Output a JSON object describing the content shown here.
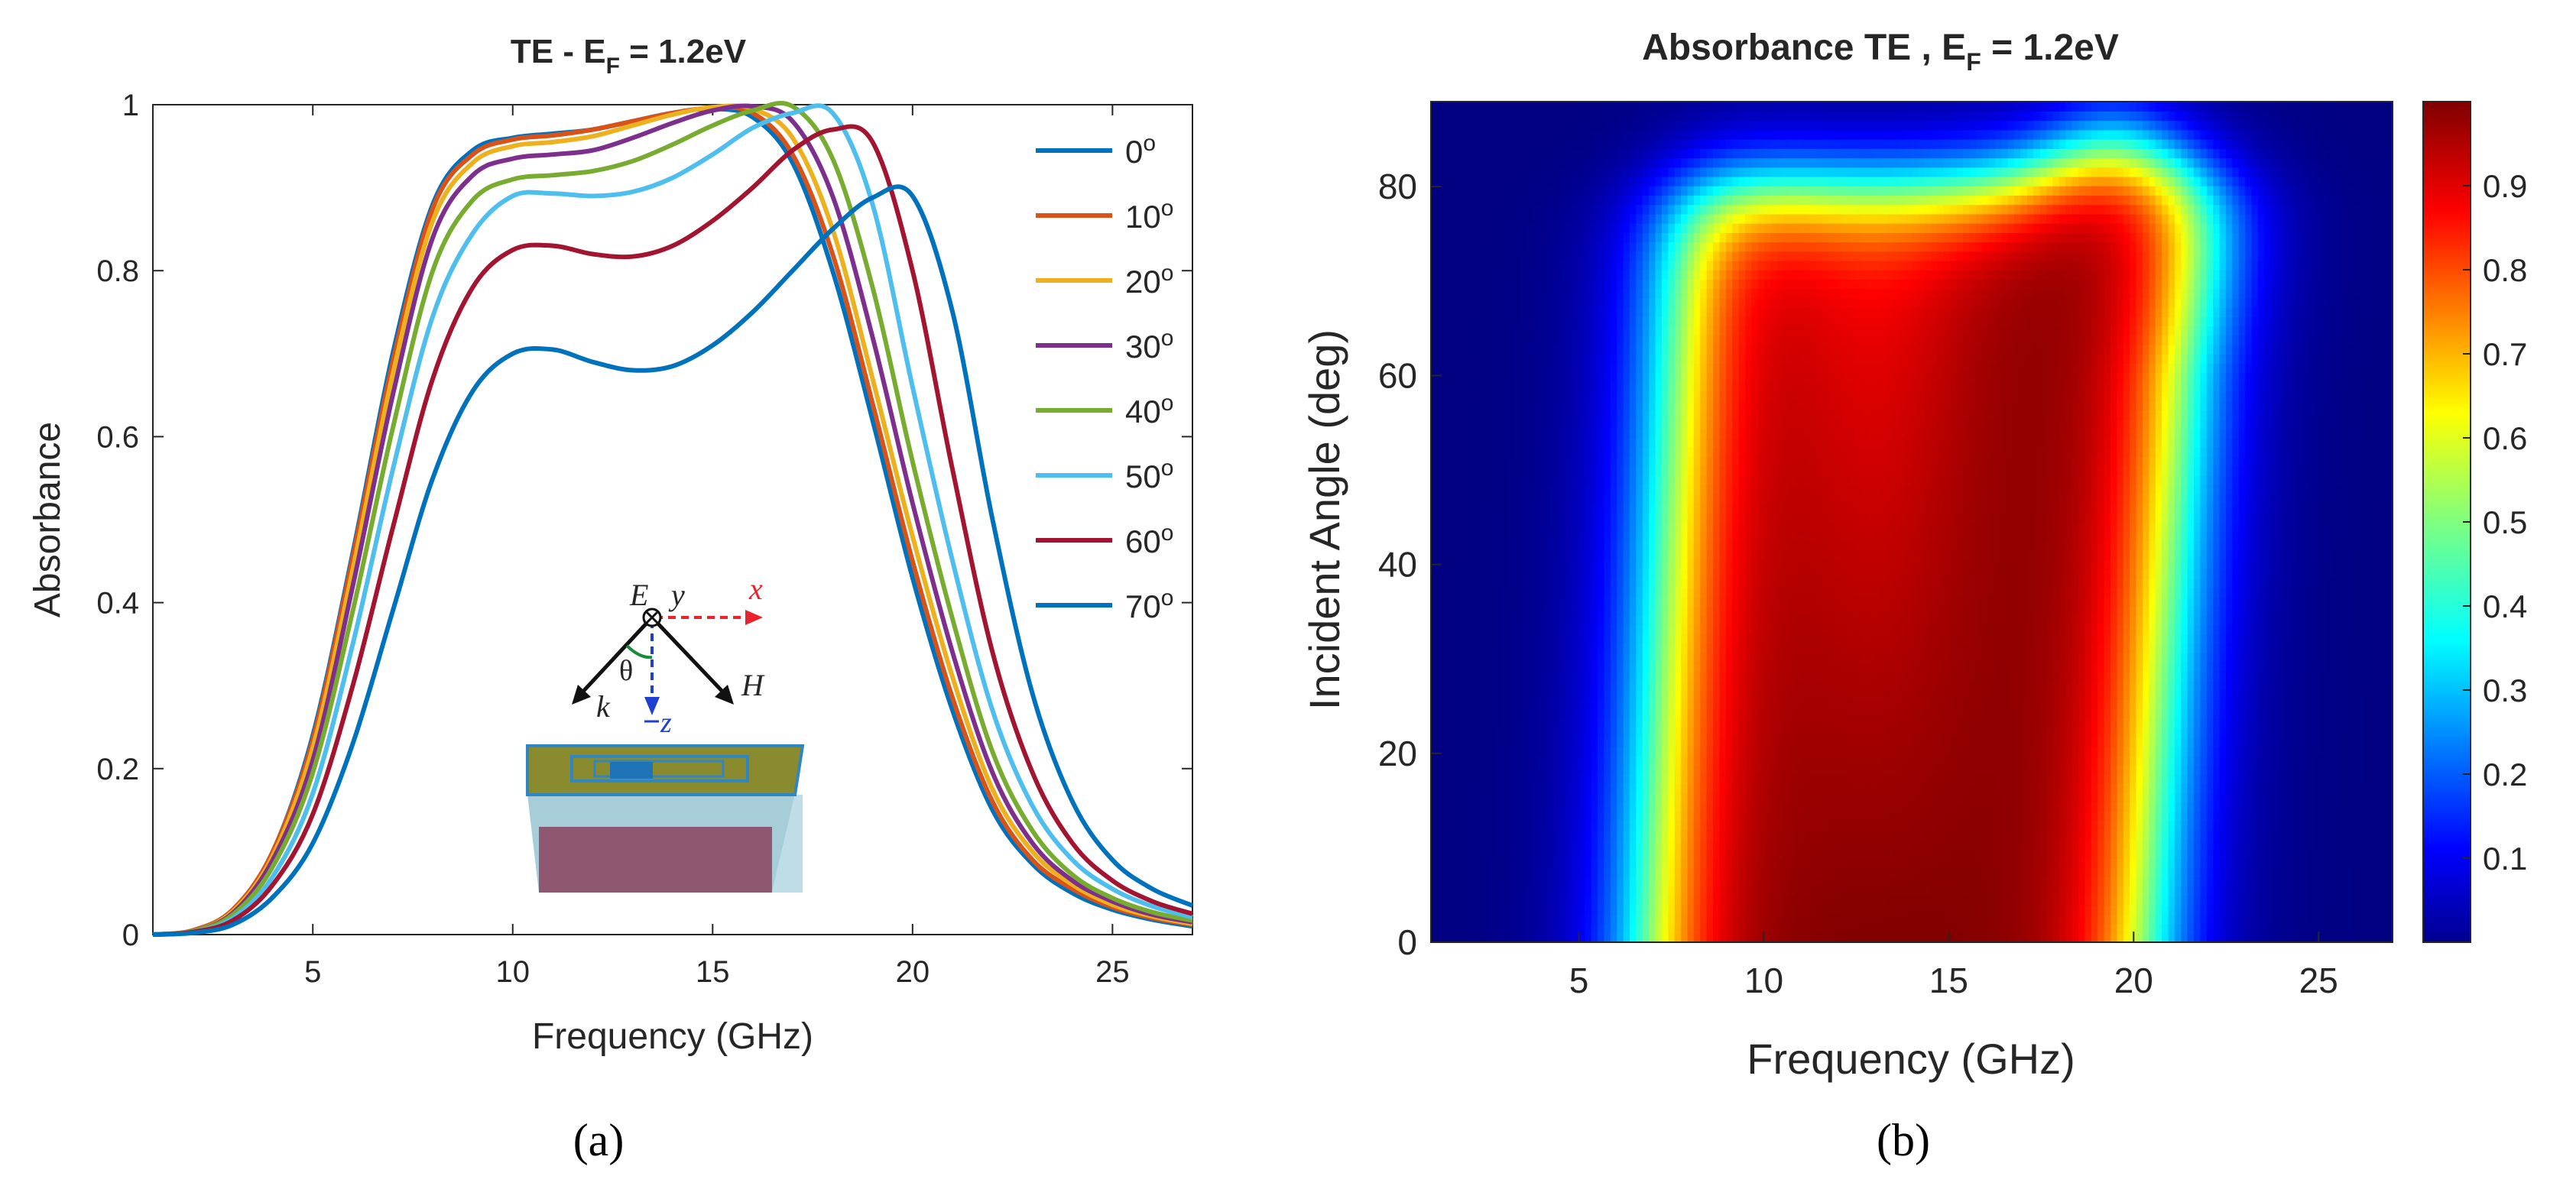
{
  "chart_data": [
    {
      "panel_label": "(a)",
      "type": "line",
      "title": "TE - E",
      "title_sub": "F",
      "title_rest": " = 1.2eV",
      "xlabel": "Frequency (GHz)",
      "ylabel": "Absorbance",
      "xlim": [
        1,
        27
      ],
      "ylim": [
        0,
        1
      ],
      "xticks": [
        5,
        10,
        15,
        20,
        25
      ],
      "yticks": [
        0,
        0.2,
        0.4,
        0.6,
        0.8,
        1
      ],
      "ytick_labels": [
        "0",
        "0.2",
        "0.4",
        "0.6",
        "0.8",
        "1"
      ],
      "legend_position": "top-right",
      "x": [
        1,
        2,
        3,
        4,
        5,
        6,
        7,
        8,
        9,
        10,
        11,
        12,
        13,
        14,
        15,
        16,
        17,
        18,
        19,
        20,
        21,
        22,
        23,
        24,
        25,
        26,
        27
      ],
      "series": [
        {
          "name": "0",
          "unit": "o",
          "color": "#0072BD",
          "values": [
            0.0,
            0.005,
            0.03,
            0.1,
            0.24,
            0.46,
            0.7,
            0.88,
            0.945,
            0.96,
            0.965,
            0.97,
            0.98,
            0.99,
            0.995,
            0.985,
            0.93,
            0.8,
            0.62,
            0.43,
            0.27,
            0.15,
            0.085,
            0.05,
            0.03,
            0.018,
            0.01
          ]
        },
        {
          "name": "10",
          "unit": "o",
          "color": "#D95319",
          "values": [
            0.0,
            0.005,
            0.03,
            0.1,
            0.235,
            0.455,
            0.69,
            0.875,
            0.94,
            0.958,
            0.963,
            0.97,
            0.98,
            0.99,
            0.996,
            0.99,
            0.94,
            0.82,
            0.64,
            0.45,
            0.285,
            0.16,
            0.09,
            0.055,
            0.033,
            0.02,
            0.012
          ]
        },
        {
          "name": "20",
          "unit": "o",
          "color": "#EDB120",
          "values": [
            0.0,
            0.004,
            0.028,
            0.095,
            0.225,
            0.44,
            0.675,
            0.86,
            0.93,
            0.95,
            0.955,
            0.962,
            0.975,
            0.988,
            0.997,
            0.995,
            0.96,
            0.85,
            0.67,
            0.48,
            0.31,
            0.175,
            0.1,
            0.06,
            0.036,
            0.022,
            0.013
          ]
        },
        {
          "name": "30",
          "unit": "o",
          "color": "#7E2F8E",
          "values": [
            0.0,
            0.004,
            0.026,
            0.09,
            0.21,
            0.42,
            0.65,
            0.84,
            0.915,
            0.935,
            0.94,
            0.945,
            0.96,
            0.978,
            0.993,
            0.998,
            0.98,
            0.89,
            0.72,
            0.52,
            0.34,
            0.195,
            0.11,
            0.065,
            0.04,
            0.024,
            0.015
          ]
        },
        {
          "name": "40",
          "unit": "o",
          "color": "#77AC30",
          "values": [
            0.0,
            0.004,
            0.024,
            0.082,
            0.195,
            0.39,
            0.61,
            0.8,
            0.885,
            0.91,
            0.915,
            0.92,
            0.932,
            0.952,
            0.975,
            0.993,
            0.998,
            0.935,
            0.78,
            0.57,
            0.38,
            0.22,
            0.125,
            0.072,
            0.044,
            0.027,
            0.017
          ]
        },
        {
          "name": "50",
          "unit": "o",
          "color": "#4DBEEE",
          "values": [
            0.0,
            0.003,
            0.02,
            0.07,
            0.17,
            0.35,
            0.56,
            0.745,
            0.845,
            0.89,
            0.893,
            0.89,
            0.895,
            0.912,
            0.94,
            0.972,
            0.99,
            0.99,
            0.88,
            0.66,
            0.45,
            0.27,
            0.155,
            0.09,
            0.055,
            0.034,
            0.021
          ]
        },
        {
          "name": "60",
          "unit": "o",
          "color": "#A2142F",
          "values": [
            0.0,
            0.003,
            0.017,
            0.06,
            0.145,
            0.3,
            0.49,
            0.67,
            0.78,
            0.825,
            0.83,
            0.82,
            0.817,
            0.83,
            0.86,
            0.9,
            0.945,
            0.97,
            0.955,
            0.8,
            0.56,
            0.34,
            0.195,
            0.11,
            0.065,
            0.04,
            0.025
          ]
        },
        {
          "name": "70",
          "unit": "o",
          "color": "#0072BD",
          "values": [
            0.0,
            0.002,
            0.012,
            0.045,
            0.11,
            0.23,
            0.39,
            0.55,
            0.655,
            0.7,
            0.705,
            0.69,
            0.68,
            0.685,
            0.71,
            0.75,
            0.8,
            0.85,
            0.888,
            0.89,
            0.75,
            0.5,
            0.29,
            0.16,
            0.09,
            0.055,
            0.035
          ]
        }
      ],
      "inset": {
        "labels": {
          "e": "E",
          "y": "y",
          "x": "x",
          "theta": "θ",
          "k": "k",
          "h": "H",
          "z": "z"
        }
      }
    },
    {
      "panel_label": "(b)",
      "type": "heatmap",
      "title": "Absorbance TE , E",
      "title_sub": "F",
      "title_rest": " = 1.2eV",
      "xlabel": "Frequency (GHz)",
      "ylabel": "Incident Angle (deg)",
      "xlim": [
        1,
        27
      ],
      "ylim": [
        0,
        89
      ],
      "xticks": [
        5,
        10,
        15,
        20,
        25
      ],
      "yticks": [
        0,
        20,
        40,
        60,
        80
      ],
      "colorbar_ticks": [
        0.1,
        0.2,
        0.3,
        0.4,
        0.5,
        0.6,
        0.7,
        0.8,
        0.9
      ],
      "colorbar_range": [
        0,
        1
      ],
      "colormap": "jet",
      "description_rule": "absorbance(f, angle) high between ~7 and ~21 GHz for angles up to ~80 deg, band shifting to higher frequency as angle increases"
    }
  ]
}
